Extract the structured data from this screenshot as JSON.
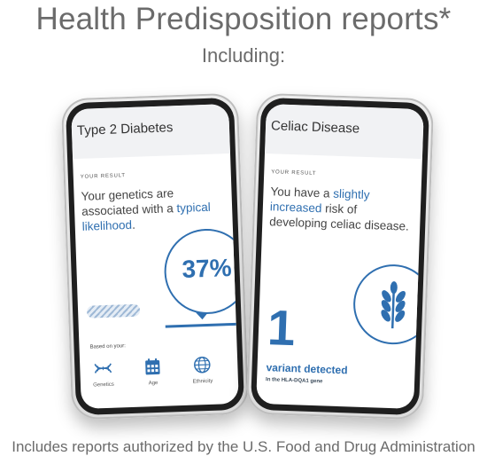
{
  "headline": "Health Predisposition reports*",
  "subhead": "Including:",
  "footer": "Includes reports authorized by the U.S. Food and Drug Administration",
  "colors": {
    "accent": "#2f6fb0",
    "header_bg": "#f1f2f4",
    "text": "#444444"
  },
  "left_card": {
    "title": "Type 2 Diabetes",
    "result_label": "YOUR RESULT",
    "result_text_1": "Your genetics are associated with a ",
    "result_text_accent": "typical likelihood",
    "result_text_2": ".",
    "percent": "37%",
    "based_on_label": "Based on your:",
    "factors": [
      {
        "label": "Genetics",
        "icon": "dna-icon"
      },
      {
        "label": "Age",
        "icon": "calendar-icon"
      },
      {
        "label": "Ethnicity",
        "icon": "globe-icon"
      }
    ]
  },
  "right_card": {
    "title": "Celiac Disease",
    "result_label": "YOUR RESULT",
    "result_text_1": "You have a ",
    "result_text_accent": "slightly increased",
    "result_text_2": " risk of developing celiac disease.",
    "variant_count": "1",
    "variant_label": "variant detected",
    "variant_gene": "In the HLA-DQA1 gene",
    "icon": "wheat-icon"
  }
}
